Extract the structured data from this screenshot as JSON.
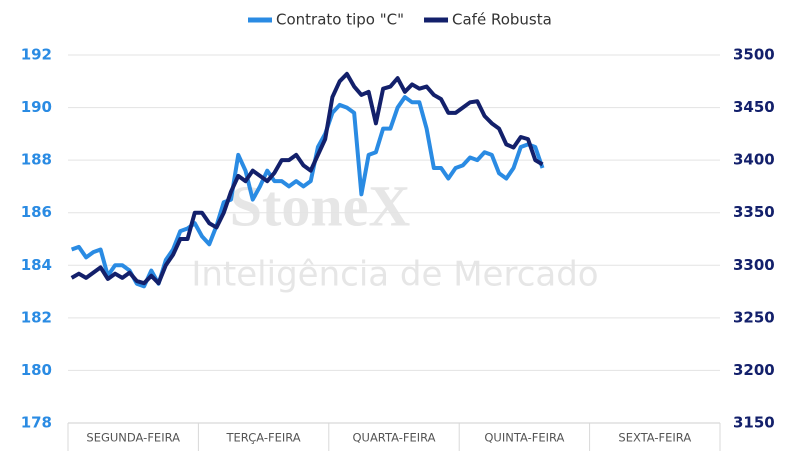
{
  "chart_data": {
    "type": "line",
    "legend": "top",
    "watermark": [
      "StoneX",
      "Inteligência de Mercado"
    ],
    "categories": [
      null,
      null,
      null,
      null,
      null,
      null,
      null,
      null,
      null,
      "SEGUNDA-FEIRA",
      null,
      null,
      null,
      null,
      null,
      null,
      null,
      null,
      null,
      null,
      null,
      null,
      null,
      null,
      null,
      null,
      null,
      "TERÇA-FEIRA",
      null,
      null,
      null,
      null,
      null,
      null,
      null,
      null,
      null,
      null,
      null,
      null,
      null,
      null,
      null,
      null,
      null,
      "QUARTA-FEIRA",
      null,
      null,
      null,
      null,
      null,
      null,
      null,
      null,
      null,
      null,
      null,
      null,
      null,
      null,
      null,
      null,
      null,
      "QUINTA-FEIRA",
      null,
      null,
      null,
      null,
      null,
      null,
      null,
      null,
      null,
      null,
      null,
      null,
      null,
      null,
      null,
      null,
      null,
      "SEXTA-FEIRA",
      null,
      null,
      null,
      null,
      null,
      null,
      null,
      null
    ],
    "series": [
      {
        "name": "Contrato tipo \"C\"",
        "color": "#2a8be3",
        "values": [
          184.6,
          184.7,
          184.3,
          184.5,
          184.6,
          183.6,
          184.0,
          184.0,
          183.8,
          183.3,
          183.2,
          183.8,
          183.3,
          184.2,
          184.6,
          185.3,
          185.4,
          185.6,
          185.1,
          184.8,
          185.5,
          186.4,
          186.5,
          188.2,
          187.6,
          186.5,
          187.0,
          187.6,
          187.2,
          187.2,
          187.0,
          187.2,
          187.0,
          187.2,
          188.5,
          189.0,
          189.8,
          190.1,
          190.0,
          189.8,
          186.7,
          188.2,
          188.3,
          189.2,
          189.2,
          190.0,
          190.4,
          190.2,
          190.2,
          189.2,
          187.7,
          187.7,
          187.3,
          187.7,
          187.8,
          188.1,
          188.0,
          188.3,
          188.2,
          187.5,
          187.3,
          187.7,
          188.5,
          188.6,
          188.5,
          187.7,
          null,
          null,
          null,
          null,
          null,
          null,
          null,
          null,
          null,
          null,
          null,
          null,
          null,
          null,
          null,
          null,
          null,
          null,
          null,
          null,
          null,
          null,
          null,
          null
        ]
      },
      {
        "name": "Café Robusta",
        "color": "#13206b",
        "axis": "y2",
        "values": [
          3288,
          3292,
          3288,
          3293,
          3298,
          3287,
          3292,
          3288,
          3293,
          3285,
          3283,
          3290,
          3283,
          3300,
          3310,
          3325,
          3325,
          3350,
          3350,
          3340,
          3336,
          3350,
          3370,
          3385,
          3380,
          3390,
          3385,
          3380,
          3388,
          3400,
          3400,
          3405,
          3395,
          3390,
          3405,
          3420,
          3460,
          3475,
          3482,
          3470,
          3462,
          3465,
          3435,
          3468,
          3470,
          3478,
          3465,
          3472,
          3468,
          3470,
          3462,
          3458,
          3445,
          3445,
          3450,
          3455,
          3456,
          3442,
          3435,
          3430,
          3415,
          3412,
          3422,
          3420,
          3400,
          3396,
          null,
          null,
          null,
          null,
          null,
          null,
          null,
          null,
          null,
          null,
          null,
          null,
          null,
          null,
          null,
          null,
          null,
          null,
          null,
          null,
          null,
          null,
          null,
          null
        ]
      }
    ],
    "ylim": [
      178,
      192
    ],
    "yticks": [
      178,
      180,
      182,
      184,
      186,
      188,
      190,
      192
    ],
    "y2lim": [
      3150,
      3500
    ],
    "y2ticks": [
      3150,
      3200,
      3250,
      3300,
      3350,
      3400,
      3450,
      3500
    ],
    "grid": true
  }
}
